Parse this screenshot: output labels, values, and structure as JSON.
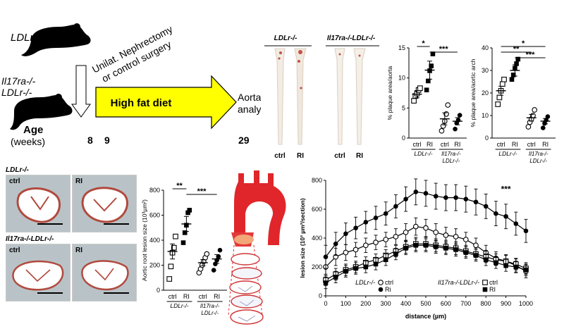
{
  "timeline": {
    "strain_top": "LDLr-/-",
    "strain_bottom_line1": "Il17ra-/-",
    "strain_bottom_line2": "LDLr-/-",
    "surgery_line1": "Unilat. Nephrectomy",
    "surgery_line2": "or control surgery",
    "diet_label": "High fat diet",
    "endpoint_line1": "Aorta",
    "endpoint_line2": "analysis",
    "age_label": "Age",
    "weeks_label": "(weeks)",
    "week_marks": [
      "8",
      "9",
      "29"
    ]
  },
  "aorta_photos": {
    "group1": "LDLr-/-",
    "group2": "Il17ra-/-LDLr-/-",
    "conditions": [
      "ctrl",
      "RI"
    ]
  },
  "micrographs": {
    "group1": "LDLr-/-",
    "group2": "Il17ra-/-LDLr-/-",
    "conditions": [
      "ctrl",
      "RI"
    ]
  },
  "chart_data": [
    {
      "type": "scatter",
      "id": "plaque-area-aorta",
      "ylabel": "% plaque area/aorta",
      "ylim": [
        0,
        15
      ],
      "yticks": [
        0,
        5,
        10,
        15
      ],
      "categories": [
        "ctrl",
        "RI",
        "ctrl",
        "RI"
      ],
      "groups": [
        "LDLr-/-",
        "Il17ra-/- LDLr-/-"
      ],
      "means": [
        7.3,
        11.3,
        3.2,
        2.8
      ],
      "sems": [
        0.6,
        1.5,
        1.0,
        0.6
      ],
      "points": [
        [
          6.2,
          7.0,
          7.4,
          8.0,
          8.3
        ],
        [
          8.0,
          9.5,
          11.2,
          12.0,
          14.0
        ],
        [
          1.2,
          2.0,
          2.8,
          4.0,
          5.5
        ],
        [
          1.5,
          2.5,
          3.0,
          3.8
        ]
      ],
      "significance": [
        {
          "label": "*",
          "from": 0,
          "to": 1
        },
        {
          "label": "***",
          "from": 1,
          "to": 3
        }
      ]
    },
    {
      "type": "scatter",
      "id": "plaque-area-aortic-arch",
      "ylabel": "% plaque area/aortic arch",
      "ylim": [
        0,
        40
      ],
      "yticks": [
        0,
        10,
        20,
        30,
        40
      ],
      "categories": [
        "ctrl",
        "RI",
        "ctrl",
        "RI"
      ],
      "groups": [
        "LDLr-/-",
        "Il17ra-/- LDLr-/-"
      ],
      "means": [
        21,
        30,
        9,
        7.5
      ],
      "sems": [
        2,
        2.5,
        1.5,
        1.2
      ],
      "points": [
        [
          15,
          18,
          21,
          24,
          26
        ],
        [
          26,
          28,
          31,
          33,
          35
        ],
        [
          5,
          7,
          8.5,
          10,
          12.5
        ],
        [
          4.5,
          6.5,
          8,
          9.5
        ]
      ],
      "significance": [
        {
          "label": "*",
          "from": 0,
          "to": 3
        },
        {
          "label": "**",
          "from": 0,
          "to": 2
        },
        {
          "label": "***",
          "from": 1,
          "to": 3
        }
      ]
    },
    {
      "type": "scatter",
      "id": "aortic-root-lesion",
      "ylabel": "Aortic root lesion size (10³µm²)",
      "ylim": [
        0,
        800
      ],
      "yticks": [
        0,
        200,
        400,
        600,
        800
      ],
      "categories": [
        "ctrl",
        "RI",
        "ctrl",
        "RI"
      ],
      "groups": [
        "LDLr-/-",
        "Il17ra-/- LDLr-/-"
      ],
      "means": [
        310,
        530,
        220,
        250
      ],
      "sems": [
        60,
        60,
        25,
        35
      ],
      "points": [
        [
          90,
          190,
          300,
          340,
          430
        ],
        [
          380,
          460,
          520,
          620,
          640
        ],
        [
          140,
          170,
          200,
          230,
          260,
          290
        ],
        [
          160,
          210,
          240,
          270,
          320
        ]
      ],
      "significance": [
        {
          "label": "**",
          "from": 0,
          "to": 1
        },
        {
          "label": "***",
          "from": 1,
          "to": 3
        }
      ]
    },
    {
      "type": "line",
      "id": "lesion-distance",
      "xlabel": "distance (µm)",
      "ylabel": "lesion size (10³ µm²/section)",
      "x": [
        0,
        50,
        100,
        150,
        200,
        250,
        300,
        350,
        400,
        450,
        500,
        550,
        600,
        650,
        700,
        750,
        800,
        850,
        900,
        950,
        1000
      ],
      "xticks": [
        0,
        100,
        200,
        300,
        400,
        500,
        600,
        700,
        800,
        900,
        1000
      ],
      "ylim": [
        0,
        800
      ],
      "yticks": [
        0,
        200,
        400,
        600,
        800
      ],
      "annotation": "***",
      "legend_group1": "LDLr-/-",
      "legend_group2": "Il17ra-/-LDLr-/-",
      "series": [
        {
          "name": "ctrl",
          "group": "LDLr-/-",
          "marker": "open-circle",
          "values": [
            200,
            270,
            300,
            320,
            350,
            370,
            390,
            410,
            440,
            480,
            470,
            440,
            420,
            410,
            390,
            350,
            300,
            260,
            240,
            210,
            170
          ],
          "err": [
            60,
            60,
            55,
            50,
            50,
            50,
            50,
            55,
            60,
            60,
            60,
            60,
            55,
            55,
            50,
            50,
            50,
            45,
            45,
            45,
            45
          ]
        },
        {
          "name": "Ri",
          "group": "LDLr-/-",
          "marker": "filled-circle",
          "values": [
            270,
            360,
            430,
            470,
            510,
            540,
            570,
            620,
            670,
            720,
            710,
            690,
            680,
            680,
            670,
            650,
            620,
            570,
            550,
            500,
            450
          ],
          "err": [
            80,
            80,
            75,
            75,
            75,
            80,
            80,
            80,
            85,
            90,
            90,
            90,
            90,
            90,
            90,
            90,
            85,
            85,
            85,
            80,
            80
          ]
        },
        {
          "name": "ctrl",
          "group": "Il17ra-/-LDLr-/-",
          "marker": "open-square",
          "values": [
            110,
            150,
            180,
            200,
            230,
            250,
            280,
            310,
            340,
            360,
            360,
            350,
            340,
            330,
            310,
            290,
            270,
            250,
            240,
            220,
            190
          ],
          "err": [
            40,
            40,
            40,
            40,
            40,
            40,
            40,
            40,
            45,
            45,
            45,
            45,
            45,
            45,
            40,
            40,
            40,
            40,
            40,
            40,
            40
          ]
        },
        {
          "name": "RI",
          "group": "Il17ra-/-LDLr-/-",
          "marker": "filled-square",
          "values": [
            90,
            130,
            170,
            190,
            200,
            220,
            250,
            290,
            330,
            350,
            350,
            340,
            330,
            320,
            300,
            280,
            250,
            230,
            210,
            200,
            180
          ],
          "err": [
            40,
            40,
            40,
            40,
            40,
            40,
            40,
            40,
            45,
            45,
            45,
            45,
            45,
            45,
            40,
            40,
            40,
            40,
            40,
            40,
            40
          ]
        }
      ]
    }
  ]
}
